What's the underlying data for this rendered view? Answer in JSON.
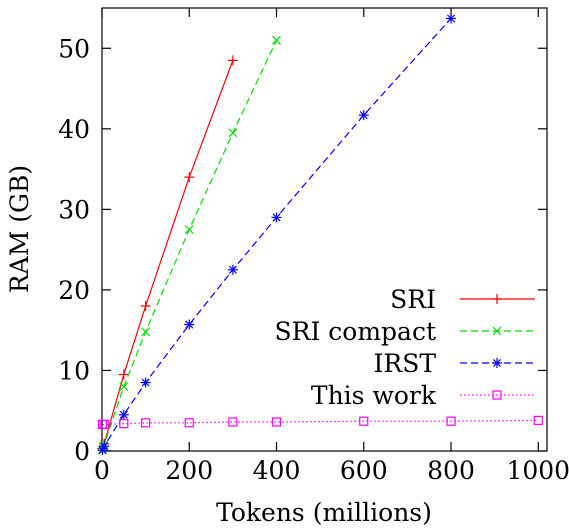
{
  "chart_data": {
    "type": "line",
    "title": "",
    "xlabel": "Tokens (millions)",
    "ylabel": "RAM (GB)",
    "xlim": [
      0,
      1020
    ],
    "ylim": [
      0,
      55
    ],
    "xticks": [
      0,
      200,
      400,
      600,
      800,
      1000
    ],
    "yticks": [
      0,
      10,
      20,
      30,
      40,
      50
    ],
    "grid": false,
    "legend_position": "right",
    "series": [
      {
        "name": "SRI",
        "color": "#ff0000",
        "dash": "solid",
        "marker": "plus",
        "x": [
          1,
          5,
          50,
          100,
          200,
          300
        ],
        "y": [
          0.3,
          0.9,
          9.5,
          18,
          34,
          48.5
        ]
      },
      {
        "name": "SRI compact",
        "color": "#00dd00",
        "dash": "dashed",
        "marker": "cross",
        "x": [
          1,
          5,
          50,
          100,
          200,
          300,
          400
        ],
        "y": [
          0.2,
          0.8,
          8.0,
          14.8,
          27.5,
          39.5,
          51
        ]
      },
      {
        "name": "IRST",
        "color": "#0000ff",
        "dash": "dashed",
        "marker": "star",
        "x": [
          1,
          5,
          50,
          100,
          200,
          300,
          400,
          600,
          800
        ],
        "y": [
          0.1,
          0.6,
          4.5,
          8.5,
          15.7,
          22.5,
          29,
          41.7,
          53.7
        ]
      },
      {
        "name": "This work",
        "color": "#ff00ff",
        "dash": "dotted",
        "marker": "square",
        "x": [
          1,
          5,
          50,
          100,
          200,
          300,
          400,
          600,
          800,
          1000
        ],
        "y": [
          3.3,
          3.3,
          3.4,
          3.5,
          3.5,
          3.6,
          3.6,
          3.7,
          3.7,
          3.8
        ]
      }
    ]
  }
}
